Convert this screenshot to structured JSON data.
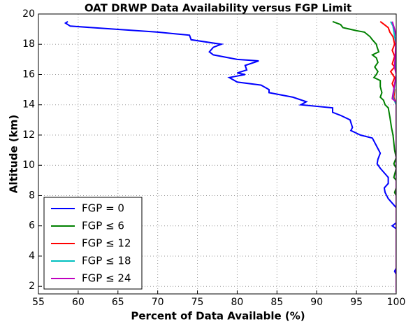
{
  "chart_data": {
    "type": "line",
    "title": "OAT DRWP Data Availability versus FGP Limit",
    "xlabel": "Percent of Data Available (%)",
    "ylabel": "Altitude (km)",
    "xlim": [
      55,
      100
    ],
    "ylim": [
      1.5,
      20
    ],
    "xticks": [
      55,
      60,
      65,
      70,
      75,
      80,
      85,
      90,
      95,
      100
    ],
    "yticks": [
      2,
      4,
      6,
      8,
      10,
      12,
      14,
      16,
      18,
      20
    ],
    "grid": true,
    "legend": "lower left",
    "series": [
      {
        "name": "FGP = 0",
        "color": "#0000ff",
        "x": [
          58.7,
          58.4,
          59,
          70,
          74,
          74.2,
          78,
          77,
          76.5,
          77,
          80,
          82.7,
          81,
          81.2,
          80,
          81,
          79,
          80,
          83,
          84,
          84,
          87,
          88.7,
          88,
          92,
          92,
          93,
          94.2,
          94.5,
          94.3,
          95.5,
          97,
          97.3,
          97.8,
          98,
          97.7,
          97.6,
          98,
          98.5,
          99,
          99,
          98.5,
          98.6,
          99,
          99.5,
          100,
          100,
          99.5,
          100,
          100,
          99.8,
          100,
          100
        ],
        "y": [
          19.5,
          19.4,
          19.2,
          18.8,
          18.6,
          18.3,
          18,
          17.8,
          17.5,
          17.3,
          17,
          16.9,
          16.6,
          16.3,
          16.1,
          16,
          15.8,
          15.5,
          15.3,
          15,
          14.8,
          14.5,
          14.2,
          14,
          13.8,
          13.5,
          13.3,
          13,
          12.5,
          12.3,
          12,
          11.8,
          11.5,
          11,
          10.8,
          10.4,
          10.1,
          9.8,
          9.5,
          9.2,
          8.8,
          8.5,
          8.2,
          7.8,
          7.5,
          7.2,
          6.2,
          6,
          5.8,
          3.2,
          3,
          2.8,
          1.6
        ]
      },
      {
        "name": "FGP ≤ 6",
        "color": "#008000",
        "x": [
          92,
          93,
          93.3,
          95,
          96,
          96.7,
          97,
          97.5,
          97.6,
          97.8,
          97,
          97.5,
          97.7,
          97.3,
          97.7,
          97.5,
          97.2,
          98,
          98,
          98.2,
          98,
          98.4,
          98.6,
          99,
          99.2,
          99.4,
          99.6,
          99.8,
          100,
          99.7,
          100,
          99.7,
          100,
          100,
          99.8,
          100,
          100
        ],
        "y": [
          19.5,
          19.3,
          19.1,
          18.9,
          18.8,
          18.5,
          18.3,
          18,
          17.8,
          17.5,
          17.3,
          17.1,
          16.8,
          16.5,
          16.2,
          16,
          15.8,
          15.6,
          15.2,
          14.8,
          14.5,
          14.3,
          14,
          13.8,
          13.2,
          12.5,
          12,
          11,
          10.5,
          10.1,
          9.8,
          9.2,
          9,
          8.5,
          8.2,
          8,
          1.6
        ]
      },
      {
        "name": "FGP ≤ 12",
        "color": "#ff0000",
        "x": [
          98,
          98.5,
          99,
          99.2,
          99.6,
          99.8,
          99.5,
          99.8,
          99.5,
          99.8,
          99.3,
          99.8,
          99.5,
          99.8,
          99.7,
          100,
          100
        ],
        "y": [
          19.5,
          19.3,
          19.1,
          18.8,
          18.5,
          18,
          17.6,
          17.2,
          16.7,
          16.5,
          16.2,
          15.8,
          15.4,
          15,
          14.5,
          14,
          1.6
        ]
      },
      {
        "name": "FGP ≤ 18",
        "color": "#00bfbf",
        "x": [
          99.3,
          99.6,
          99.8,
          100,
          99.9,
          100,
          99.6,
          100,
          100
        ],
        "y": [
          19.5,
          19.2,
          18.5,
          18,
          16.5,
          16,
          14.5,
          14,
          1.6
        ]
      },
      {
        "name": "FGP ≤ 24",
        "color": "#bf00bf",
        "x": [
          99.5,
          99.8,
          100,
          99.8,
          100,
          99.5,
          100,
          100
        ],
        "y": [
          19.5,
          19,
          18.5,
          16.5,
          16,
          14.4,
          14.2,
          1.6
        ]
      }
    ]
  }
}
